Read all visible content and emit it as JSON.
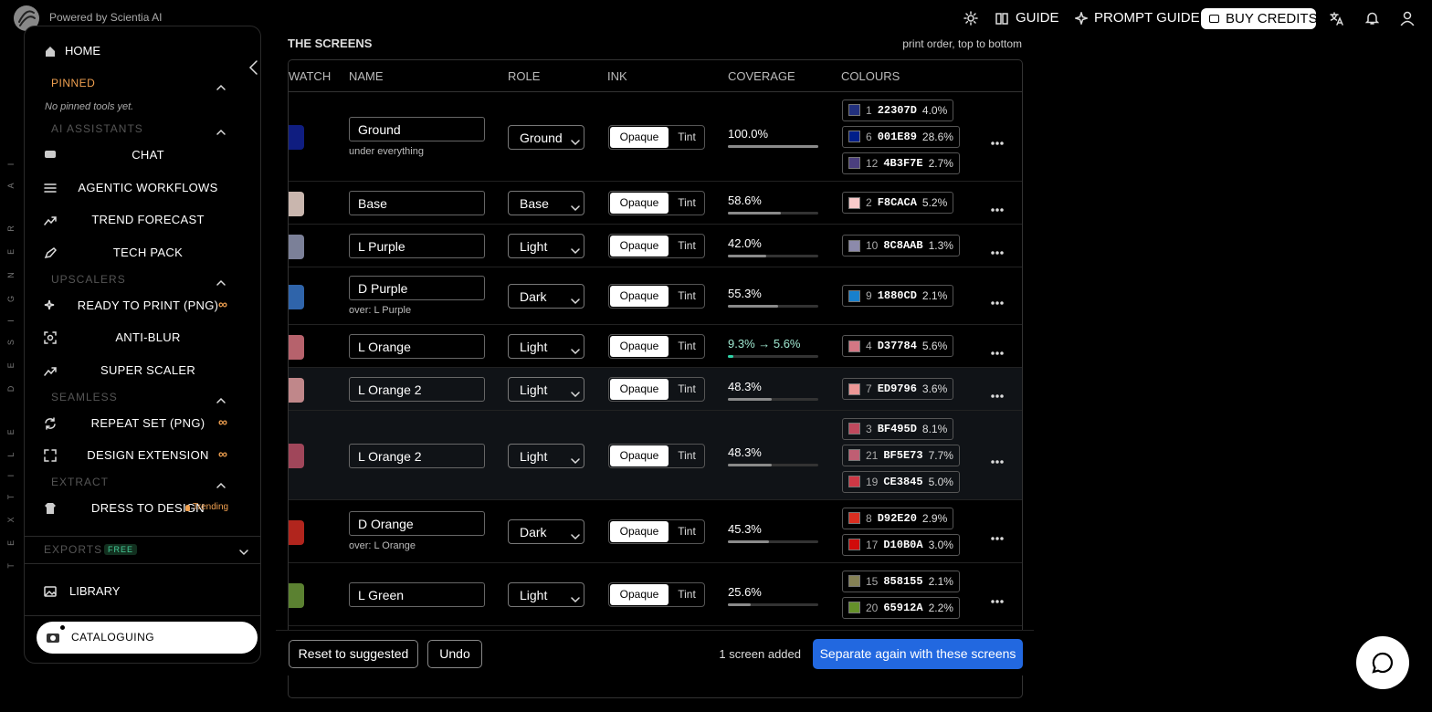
{
  "header": {
    "powered": "Powered by Scientia AI",
    "nav": [
      "GUIDE",
      "PROMPT GUIDE",
      "BUY CREDITS"
    ]
  },
  "sidebar": {
    "brand": "TEXTILE DESIGNER AI",
    "home": "HOME",
    "pinned": {
      "title": "PINNED",
      "empty": "No pinned tools yet."
    },
    "groups": [
      {
        "title": "AI ASSISTANTS",
        "items": [
          {
            "label": "CHAT"
          },
          {
            "label": "AGENTIC WORKFLOWS"
          },
          {
            "label": "TREND FORECAST"
          },
          {
            "label": "TECH PACK"
          }
        ]
      },
      {
        "title": "UPSCALERS",
        "items": [
          {
            "label": "READY TO PRINT (PNG)",
            "badge": "∞"
          },
          {
            "label": "ANTI-BLUR"
          },
          {
            "label": "SUPER SCALER"
          }
        ]
      },
      {
        "title": "SEAMLESS",
        "items": [
          {
            "label": "REPEAT SET (PNG)",
            "badge": "∞"
          },
          {
            "label": "DESIGN EXTENSION",
            "badge": "∞"
          }
        ]
      },
      {
        "title": "EXTRACT",
        "items": [
          {
            "label": "DRESS TO DESIGN",
            "tag": "Trending"
          }
        ]
      }
    ],
    "exports": {
      "title": "EXPORTS",
      "badge": "FREE"
    },
    "library": "LIBRARY",
    "cataloguing": "CATALOGUING"
  },
  "screens": {
    "title": "THE SCREENS",
    "note": "print order, top to bottom",
    "columns": [
      "WATCH",
      "NAME",
      "ROLE",
      "INK",
      "COVERAGE",
      "COLOURS"
    ],
    "ink_options": [
      "Opaque",
      "Tint"
    ],
    "rows": [
      {
        "swatch": "#0f1d80",
        "name": "Ground",
        "sub": "under everything",
        "role": "Ground",
        "coverage": 100.0,
        "coverage_label": "100.0%",
        "colours": [
          {
            "index": "1",
            "hex": "22307D",
            "pct": "4.0%"
          },
          {
            "index": "6",
            "hex": "001E89",
            "pct": "28.6%"
          },
          {
            "index": "12",
            "hex": "4B3F7E",
            "pct": "2.7%"
          }
        ]
      },
      {
        "swatch": "#c9b6ae",
        "name": "Base",
        "role": "Base",
        "coverage": 58.6,
        "coverage_label": "58.6%",
        "colours": [
          {
            "index": "2",
            "hex": "F8CACA",
            "pct": "5.2%"
          }
        ]
      },
      {
        "swatch": "#7b8098",
        "name": "L Purple",
        "role": "Light",
        "coverage": 42.0,
        "coverage_label": "42.0%",
        "colours": [
          {
            "index": "10",
            "hex": "8C8AAB",
            "pct": "1.3%"
          }
        ]
      },
      {
        "swatch": "#2f64aa",
        "name": "D Purple",
        "sub": "over: L Purple",
        "role": "Dark",
        "coverage": 55.3,
        "coverage_label": "55.3%",
        "colours": [
          {
            "index": "9",
            "hex": "1880CD",
            "pct": "2.1%"
          }
        ]
      },
      {
        "swatch": "#b6626c",
        "name": "L Orange",
        "role": "Light",
        "coverage": 5.6,
        "coverage_label": "9.3% → 5.6%",
        "colours": [
          {
            "index": "4",
            "hex": "D37784",
            "pct": "5.6%"
          }
        ]
      },
      {
        "swatch": "#c0878a",
        "name": "L Orange 2",
        "role": "Light",
        "coverage": 48.3,
        "coverage_label": "48.3%",
        "selected": true,
        "colours": [
          {
            "index": "7",
            "hex": "ED9796",
            "pct": "3.6%"
          }
        ]
      },
      {
        "swatch": "#a0465a",
        "name": "L Orange 2",
        "role": "Light",
        "coverage": 48.3,
        "coverage_label": "48.3%",
        "selected": true,
        "colours": [
          {
            "index": "3",
            "hex": "BF495D",
            "pct": "8.1%"
          },
          {
            "index": "21",
            "hex": "BF5E73",
            "pct": "7.7%"
          },
          {
            "index": "19",
            "hex": "CE3845",
            "pct": "5.0%"
          }
        ]
      },
      {
        "swatch": "#b1251d",
        "name": "D Orange",
        "sub": "over: L Orange",
        "role": "Dark",
        "coverage": 45.3,
        "coverage_label": "45.3%",
        "colours": [
          {
            "index": "8",
            "hex": "D92E20",
            "pct": "2.9%"
          },
          {
            "index": "17",
            "hex": "D10B0A",
            "pct": "3.0%"
          }
        ]
      },
      {
        "swatch": "#5b8131",
        "name": "L Green",
        "role": "Light",
        "coverage": 25.6,
        "coverage_label": "25.6%",
        "colours": [
          {
            "index": "15",
            "hex": "858155",
            "pct": "2.1%"
          },
          {
            "index": "20",
            "hex": "65912A",
            "pct": "2.2%"
          }
        ]
      }
    ],
    "footer": {
      "reset": "Reset to suggested",
      "undo": "Undo",
      "status": "1 screen added",
      "action": "Separate again with these screens"
    }
  }
}
